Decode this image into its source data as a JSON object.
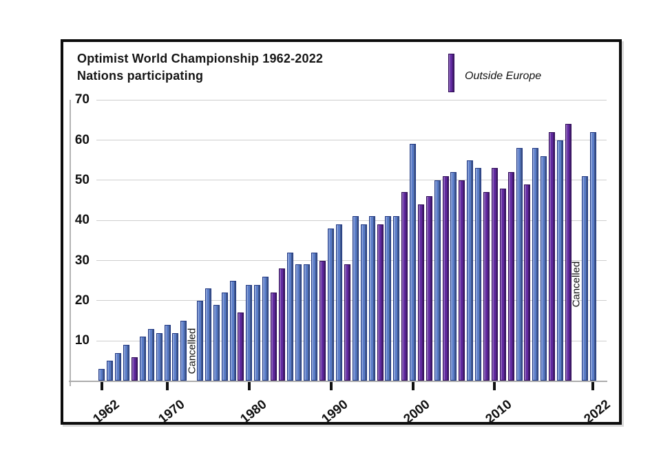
{
  "chart_data": {
    "type": "bar",
    "title": "Optimist World Championship 1962-2022",
    "subtitle": "Nations participating",
    "legend_label": "Outside Europe",
    "legend_position": "top-right",
    "cancelled_label": "Cancelled",
    "grid": true,
    "ylim": [
      0,
      70
    ],
    "yticks": [
      10,
      20,
      30,
      40,
      50,
      60,
      70
    ],
    "xticks": [
      1962,
      1970,
      1980,
      1990,
      2000,
      2010,
      2022
    ],
    "colors": {
      "europe": "#5a7cc8",
      "outside": "#6129a0"
    },
    "cancelled_years": [
      1973,
      2020
    ],
    "points": [
      {
        "year": 1962,
        "value": 3,
        "outside": false
      },
      {
        "year": 1963,
        "value": 5,
        "outside": false
      },
      {
        "year": 1964,
        "value": 7,
        "outside": false
      },
      {
        "year": 1965,
        "value": 9,
        "outside": false
      },
      {
        "year": 1966,
        "value": 6,
        "outside": true
      },
      {
        "year": 1967,
        "value": 11,
        "outside": false
      },
      {
        "year": 1968,
        "value": 13,
        "outside": false
      },
      {
        "year": 1969,
        "value": 12,
        "outside": false
      },
      {
        "year": 1970,
        "value": 14,
        "outside": false
      },
      {
        "year": 1971,
        "value": 12,
        "outside": false
      },
      {
        "year": 1972,
        "value": 15,
        "outside": false
      },
      {
        "year": 1973,
        "cancelled": true
      },
      {
        "year": 1974,
        "value": 20,
        "outside": false
      },
      {
        "year": 1975,
        "value": 23,
        "outside": false
      },
      {
        "year": 1976,
        "value": 19,
        "outside": false
      },
      {
        "year": 1977,
        "value": 22,
        "outside": false
      },
      {
        "year": 1978,
        "value": 25,
        "outside": false
      },
      {
        "year": 1979,
        "value": 17,
        "outside": true
      },
      {
        "year": 1980,
        "value": 24,
        "outside": false
      },
      {
        "year": 1981,
        "value": 24,
        "outside": false
      },
      {
        "year": 1982,
        "value": 26,
        "outside": false
      },
      {
        "year": 1983,
        "value": 22,
        "outside": true
      },
      {
        "year": 1984,
        "value": 28,
        "outside": true
      },
      {
        "year": 1985,
        "value": 32,
        "outside": false
      },
      {
        "year": 1986,
        "value": 29,
        "outside": false
      },
      {
        "year": 1987,
        "value": 29,
        "outside": false
      },
      {
        "year": 1988,
        "value": 32,
        "outside": false
      },
      {
        "year": 1989,
        "value": 30,
        "outside": true
      },
      {
        "year": 1990,
        "value": 38,
        "outside": false
      },
      {
        "year": 1991,
        "value": 39,
        "outside": false
      },
      {
        "year": 1992,
        "value": 29,
        "outside": true
      },
      {
        "year": 1993,
        "value": 41,
        "outside": false
      },
      {
        "year": 1994,
        "value": 39,
        "outside": false
      },
      {
        "year": 1995,
        "value": 41,
        "outside": false
      },
      {
        "year": 1996,
        "value": 39,
        "outside": true
      },
      {
        "year": 1997,
        "value": 41,
        "outside": false
      },
      {
        "year": 1998,
        "value": 41,
        "outside": false
      },
      {
        "year": 1999,
        "value": 47,
        "outside": true
      },
      {
        "year": 2000,
        "value": 59,
        "outside": false
      },
      {
        "year": 2001,
        "value": 44,
        "outside": true
      },
      {
        "year": 2002,
        "value": 46,
        "outside": true
      },
      {
        "year": 2003,
        "value": 50,
        "outside": false
      },
      {
        "year": 2004,
        "value": 51,
        "outside": true
      },
      {
        "year": 2005,
        "value": 52,
        "outside": false
      },
      {
        "year": 2006,
        "value": 50,
        "outside": true
      },
      {
        "year": 2007,
        "value": 55,
        "outside": false
      },
      {
        "year": 2008,
        "value": 53,
        "outside": false
      },
      {
        "year": 2009,
        "value": 47,
        "outside": true
      },
      {
        "year": 2010,
        "value": 53,
        "outside": true
      },
      {
        "year": 2011,
        "value": 48,
        "outside": true
      },
      {
        "year": 2012,
        "value": 52,
        "outside": true
      },
      {
        "year": 2013,
        "value": 58,
        "outside": false
      },
      {
        "year": 2014,
        "value": 49,
        "outside": true
      },
      {
        "year": 2015,
        "value": 58,
        "outside": false
      },
      {
        "year": 2016,
        "value": 56,
        "outside": false
      },
      {
        "year": 2017,
        "value": 62,
        "outside": true
      },
      {
        "year": 2018,
        "value": 60,
        "outside": false
      },
      {
        "year": 2019,
        "value": 64,
        "outside": true
      },
      {
        "year": 2020,
        "cancelled": true
      },
      {
        "year": 2021,
        "value": 51,
        "outside": false
      },
      {
        "year": 2022,
        "value": 62,
        "outside": false
      }
    ]
  }
}
